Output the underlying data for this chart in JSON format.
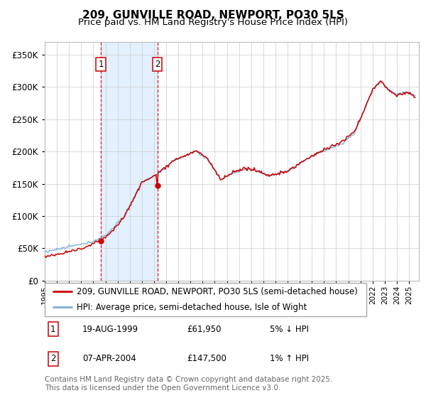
{
  "title": "209, GUNVILLE ROAD, NEWPORT, PO30 5LS",
  "subtitle": "Price paid vs. HM Land Registry's House Price Index (HPI)",
  "ylim": [
    0,
    370000
  ],
  "yticks": [
    0,
    50000,
    100000,
    150000,
    200000,
    250000,
    300000,
    350000
  ],
  "sale1": {
    "date_label": "1",
    "date": "19-AUG-1999",
    "price": 61950,
    "note": "5% ↓ HPI"
  },
  "sale2": {
    "date_label": "2",
    "date": "07-APR-2004",
    "price": 147500,
    "note": "1% ↑ HPI"
  },
  "sale1_x": 1999.63,
  "sale2_x": 2004.27,
  "legend_line1": "209, GUNVILLE ROAD, NEWPORT, PO30 5LS (semi-detached house)",
  "legend_line2": "HPI: Average price, semi-detached house, Isle of Wight",
  "footer": "Contains HM Land Registry data © Crown copyright and database right 2025.\nThis data is licensed under the Open Government Licence v3.0.",
  "line_color_red": "#cc0000",
  "line_color_blue": "#7ab0d4",
  "shade_color": "#ddeeff",
  "grid_color": "#cccccc",
  "title_fontsize": 11,
  "subtitle_fontsize": 9.5,
  "footer_fontsize": 7.5
}
